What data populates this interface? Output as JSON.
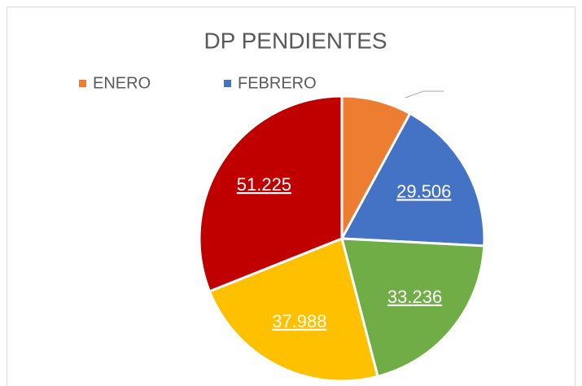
{
  "chart_data": {
    "type": "pie",
    "title": "DP PENDIENTES",
    "categories": [
      "ENERO",
      "FEBRERO",
      null,
      null,
      null
    ],
    "values": [
      13100,
      29506,
      33236,
      37988,
      51225
    ],
    "value_labels": [
      null,
      "29.506",
      "33.236",
      "37.988",
      "51.225"
    ],
    "colors": [
      "#ED7D31",
      "#4472C4",
      "#70AD47",
      "#FFC000",
      "#C00000"
    ],
    "legend": "top"
  }
}
